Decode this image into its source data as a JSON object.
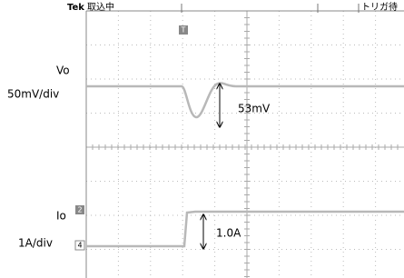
{
  "header": {
    "brand": "Tek",
    "status": "取込中",
    "trigger_state": "トリガ待"
  },
  "markers": {
    "trigger": "T",
    "ch2": "2",
    "ch4": "4"
  },
  "channels": [
    {
      "name": "Vo",
      "scale": "50mV/div",
      "annotation": "53mV"
    },
    {
      "name": "Io",
      "scale": "1A/div",
      "annotation": "1.0A"
    }
  ]
}
